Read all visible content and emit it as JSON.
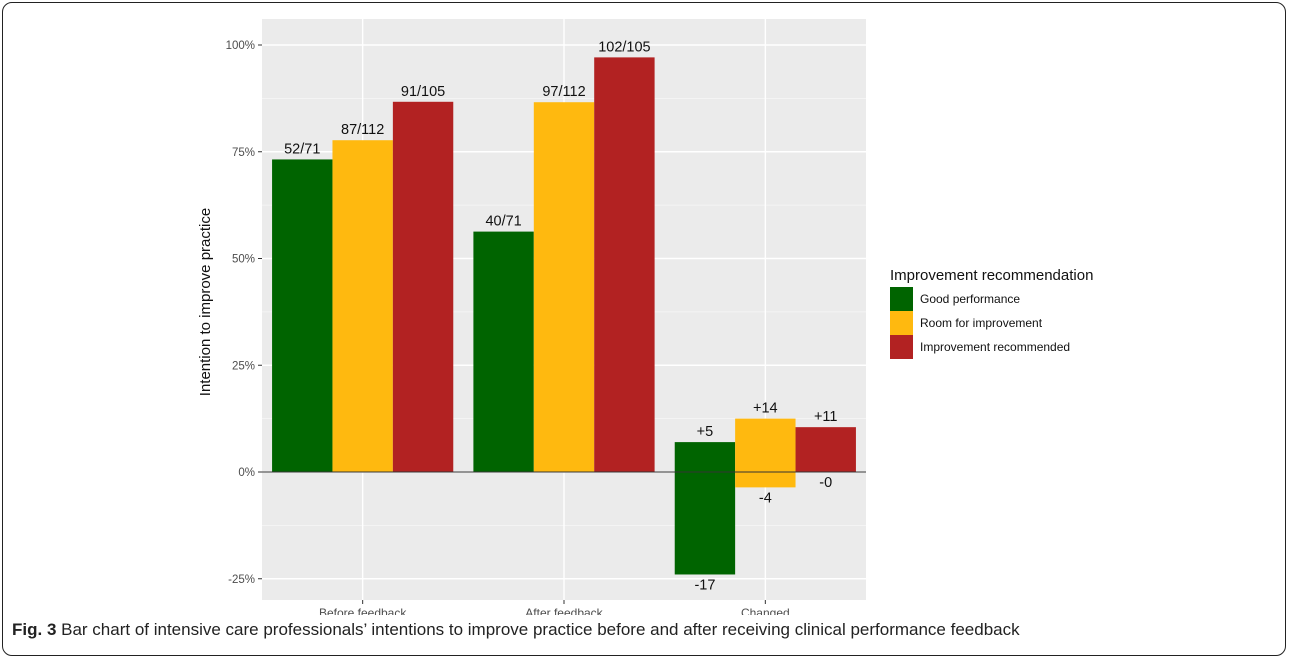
{
  "chart_data": {
    "type": "bar",
    "title": "",
    "xlabel": "",
    "ylabel": "Intention to improve practice",
    "ylim": [
      -0.3,
      1.03
    ],
    "y_ticks": [
      -0.25,
      0,
      0.25,
      0.5,
      0.75,
      1.0
    ],
    "y_tick_labels": [
      "-25%",
      "0%",
      "25%",
      "50%",
      "75%",
      "100%"
    ],
    "grid": true,
    "legend_position": "right",
    "legend_title": "Improvement recommendation",
    "categories": [
      "Before feedback",
      "After feedback",
      "Changed"
    ],
    "series": [
      {
        "name": "Good performance",
        "color": "#006400",
        "bars": [
          [
            {
              "value": 0.732,
              "label": "52/71"
            }
          ],
          [
            {
              "value": 0.563,
              "label": "40/71"
            }
          ],
          [
            {
              "value": 0.07,
              "label": "+5"
            },
            {
              "value": -0.24,
              "label": "-17"
            }
          ]
        ]
      },
      {
        "name": "Room for improvement",
        "color": "#FFB90F",
        "bars": [
          [
            {
              "value": 0.777,
              "label": "87/112"
            }
          ],
          [
            {
              "value": 0.866,
              "label": "97/112"
            }
          ],
          [
            {
              "value": 0.125,
              "label": "+14"
            },
            {
              "value": -0.036,
              "label": "-4"
            }
          ]
        ]
      },
      {
        "name": "Improvement recommended",
        "color": "#B22222",
        "bars": [
          [
            {
              "value": 0.867,
              "label": "91/105"
            }
          ],
          [
            {
              "value": 0.971,
              "label": "102/105"
            }
          ],
          [
            {
              "value": 0.105,
              "label": "+11"
            },
            {
              "value": 0.0,
              "label": "-0"
            }
          ]
        ]
      }
    ]
  },
  "caption": {
    "fig_label": "Fig. 3",
    "text": " Bar chart of intensive care professionals’ intentions to improve practice before and after receiving clinical performance feedback"
  }
}
